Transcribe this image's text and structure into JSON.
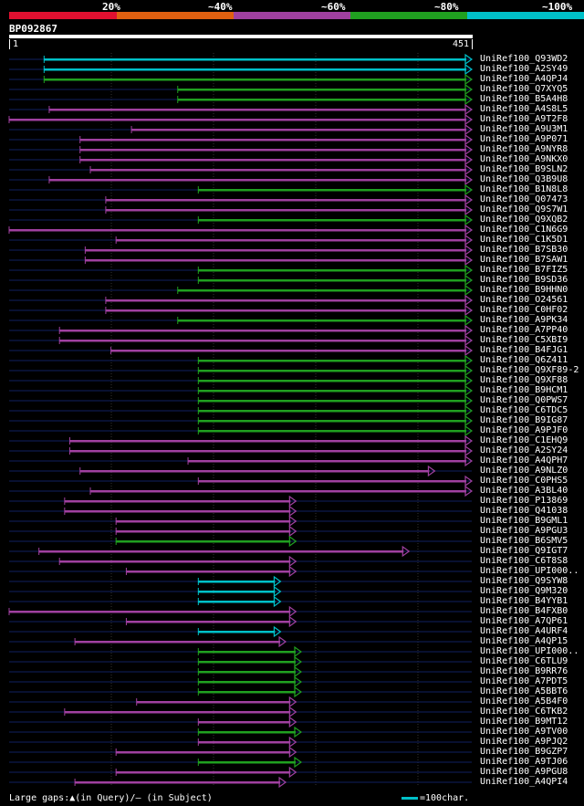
{
  "legend": {
    "labels": [
      "20%",
      "~40%",
      "~60%",
      "~80%",
      "~100%"
    ],
    "colors": [
      "#e01030",
      "#e06010",
      "#a040a0",
      "#20a020",
      "#00c0c8"
    ]
  },
  "query": {
    "name": "BP092867",
    "start": "1",
    "end": "451",
    "length": 451
  },
  "hits": [
    {
      "name": "UniRef100_Q93WD2",
      "start": 35,
      "end": 451,
      "color": "#00c0c8"
    },
    {
      "name": "UniRef100_A2SY49",
      "start": 35,
      "end": 451,
      "color": "#00c0c8"
    },
    {
      "name": "UniRef100_A4QPJ4",
      "start": 35,
      "end": 451,
      "color": "#20a020"
    },
    {
      "name": "UniRef100_Q7XYQ5",
      "start": 165,
      "end": 451,
      "color": "#20a020"
    },
    {
      "name": "UniRef100_B5A4H8",
      "start": 165,
      "end": 451,
      "color": "#20a020"
    },
    {
      "name": "UniRef100_A4S8L5",
      "start": 40,
      "end": 451,
      "color": "#a040a0"
    },
    {
      "name": "UniRef100_A9T2F8",
      "start": 1,
      "end": 451,
      "color": "#a040a0"
    },
    {
      "name": "UniRef100_A9U3M1",
      "start": 120,
      "end": 451,
      "color": "#a040a0"
    },
    {
      "name": "UniRef100_A9P071",
      "start": 70,
      "end": 451,
      "color": "#a040a0"
    },
    {
      "name": "UniRef100_A9NYR8",
      "start": 70,
      "end": 451,
      "color": "#a040a0"
    },
    {
      "name": "UniRef100_A9NKX0",
      "start": 70,
      "end": 451,
      "color": "#a040a0"
    },
    {
      "name": "UniRef100_B9SLN2",
      "start": 80,
      "end": 451,
      "color": "#a040a0"
    },
    {
      "name": "UniRef100_Q3B9U8",
      "start": 40,
      "end": 451,
      "color": "#a040a0"
    },
    {
      "name": "UniRef100_B1N8L8",
      "start": 185,
      "end": 451,
      "color": "#20a020"
    },
    {
      "name": "UniRef100_Q07473",
      "start": 95,
      "end": 451,
      "color": "#a040a0"
    },
    {
      "name": "UniRef100_Q9S7W1",
      "start": 95,
      "end": 451,
      "color": "#a040a0"
    },
    {
      "name": "UniRef100_Q9XQB2",
      "start": 185,
      "end": 451,
      "color": "#20a020"
    },
    {
      "name": "UniRef100_C1N6G9",
      "start": 1,
      "end": 451,
      "color": "#a040a0"
    },
    {
      "name": "UniRef100_C1K5D1",
      "start": 105,
      "end": 451,
      "color": "#a040a0"
    },
    {
      "name": "UniRef100_B7SB30",
      "start": 75,
      "end": 451,
      "color": "#a040a0"
    },
    {
      "name": "UniRef100_B7SAW1",
      "start": 75,
      "end": 451,
      "color": "#a040a0"
    },
    {
      "name": "UniRef100_B7FIZ5",
      "start": 185,
      "end": 451,
      "color": "#20a020"
    },
    {
      "name": "UniRef100_B9SD36",
      "start": 185,
      "end": 451,
      "color": "#20a020"
    },
    {
      "name": "UniRef100_B9HHN0",
      "start": 165,
      "end": 451,
      "color": "#20a020"
    },
    {
      "name": "UniRef100_O24561",
      "start": 95,
      "end": 451,
      "color": "#a040a0"
    },
    {
      "name": "UniRef100_C0HF02",
      "start": 95,
      "end": 451,
      "color": "#a040a0"
    },
    {
      "name": "UniRef100_A9PK34",
      "start": 165,
      "end": 451,
      "color": "#20a020"
    },
    {
      "name": "UniRef100_A7PP40",
      "start": 50,
      "end": 451,
      "color": "#a040a0"
    },
    {
      "name": "UniRef100_C5XBI9",
      "start": 50,
      "end": 451,
      "color": "#a040a0"
    },
    {
      "name": "UniRef100_B4FJG1",
      "start": 100,
      "end": 451,
      "color": "#a040a0"
    },
    {
      "name": "UniRef100_Q6Z411",
      "start": 185,
      "end": 451,
      "color": "#20a020"
    },
    {
      "name": "UniRef100_Q9XF89-2",
      "start": 185,
      "end": 451,
      "color": "#20a020"
    },
    {
      "name": "UniRef100_Q9XF88",
      "start": 185,
      "end": 451,
      "color": "#20a020"
    },
    {
      "name": "UniRef100_B9HCM1",
      "start": 185,
      "end": 451,
      "color": "#20a020"
    },
    {
      "name": "UniRef100_Q0PWS7",
      "start": 185,
      "end": 451,
      "color": "#20a020"
    },
    {
      "name": "UniRef100_C6TDC5",
      "start": 185,
      "end": 451,
      "color": "#20a020"
    },
    {
      "name": "UniRef100_B9IG87",
      "start": 185,
      "end": 451,
      "color": "#20a020"
    },
    {
      "name": "UniRef100_A9PJF0",
      "start": 185,
      "end": 451,
      "color": "#20a020"
    },
    {
      "name": "UniRef100_C1EHQ9",
      "start": 60,
      "end": 451,
      "color": "#a040a0"
    },
    {
      "name": "UniRef100_A2SY24",
      "start": 60,
      "end": 451,
      "color": "#a040a0"
    },
    {
      "name": "UniRef100_A4QPH7",
      "start": 175,
      "end": 451,
      "color": "#a040a0"
    },
    {
      "name": "UniRef100_A9NLZ0",
      "start": 70,
      "end": 415,
      "color": "#a040a0"
    },
    {
      "name": "UniRef100_C0PHS5",
      "start": 185,
      "end": 451,
      "color": "#a040a0"
    },
    {
      "name": "UniRef100_A3BL40",
      "start": 80,
      "end": 451,
      "color": "#a040a0"
    },
    {
      "name": "UniRef100_P13869",
      "start": 55,
      "end": 280,
      "color": "#a040a0"
    },
    {
      "name": "UniRef100_Q41038",
      "start": 55,
      "end": 280,
      "color": "#a040a0"
    },
    {
      "name": "UniRef100_B9GML1",
      "start": 105,
      "end": 280,
      "color": "#a040a0"
    },
    {
      "name": "UniRef100_A9PGU3",
      "start": 105,
      "end": 280,
      "color": "#a040a0"
    },
    {
      "name": "UniRef100_B6SMV5",
      "start": 105,
      "end": 280,
      "color": "#20a020"
    },
    {
      "name": "UniRef100_Q9IGT7",
      "start": 30,
      "end": 390,
      "color": "#a040a0"
    },
    {
      "name": "UniRef100_C6T8S8",
      "start": 50,
      "end": 280,
      "color": "#a040a0"
    },
    {
      "name": "UniRef100_UPI000..",
      "start": 115,
      "end": 280,
      "color": "#a040a0"
    },
    {
      "name": "UniRef100_Q9SYW8",
      "start": 185,
      "end": 265,
      "color": "#00c0c8"
    },
    {
      "name": "UniRef100_Q9M320",
      "start": 185,
      "end": 265,
      "color": "#00c0c8"
    },
    {
      "name": "UniRef100_B4YYB1",
      "start": 185,
      "end": 265,
      "color": "#00c0c8"
    },
    {
      "name": "UniRef100_B4FXB0",
      "start": 1,
      "end": 280,
      "color": "#a040a0"
    },
    {
      "name": "UniRef100_A7QP61",
      "start": 115,
      "end": 280,
      "color": "#a040a0"
    },
    {
      "name": "UniRef100_A4URF4",
      "start": 185,
      "end": 265,
      "color": "#00c0c8"
    },
    {
      "name": "UniRef100_A4QP15",
      "start": 65,
      "end": 270,
      "color": "#a040a0"
    },
    {
      "name": "UniRef100_UPI000..",
      "start": 185,
      "end": 285,
      "color": "#20a020"
    },
    {
      "name": "UniRef100_C6TLU9",
      "start": 185,
      "end": 285,
      "color": "#20a020"
    },
    {
      "name": "UniRef100_B9RR76",
      "start": 185,
      "end": 285,
      "color": "#20a020"
    },
    {
      "name": "UniRef100_A7PDT5",
      "start": 185,
      "end": 285,
      "color": "#20a020"
    },
    {
      "name": "UniRef100_A5BBT6",
      "start": 185,
      "end": 285,
      "color": "#20a020"
    },
    {
      "name": "UniRef100_A5B4F0",
      "start": 125,
      "end": 280,
      "color": "#a040a0"
    },
    {
      "name": "UniRef100_C6TKB2",
      "start": 55,
      "end": 280,
      "color": "#a040a0"
    },
    {
      "name": "UniRef100_B9MT12",
      "start": 185,
      "end": 280,
      "color": "#a040a0"
    },
    {
      "name": "UniRef100_A9TV00",
      "start": 185,
      "end": 285,
      "color": "#20a020"
    },
    {
      "name": "UniRef100_A9PJQ2",
      "start": 185,
      "end": 280,
      "color": "#a040a0"
    },
    {
      "name": "UniRef100_B9GZP7",
      "start": 105,
      "end": 280,
      "color": "#a040a0"
    },
    {
      "name": "UniRef100_A9TJ06",
      "start": 185,
      "end": 285,
      "color": "#20a020"
    },
    {
      "name": "UniRef100_A9PGU8",
      "start": 105,
      "end": 280,
      "color": "#a040a0"
    },
    {
      "name": "UniRef100_A4QPI4",
      "start": 65,
      "end": 270,
      "color": "#a040a0"
    }
  ],
  "footer": {
    "text": "Large gaps:▲(in Query)/– (in Subject)",
    "scale": "=100char."
  }
}
